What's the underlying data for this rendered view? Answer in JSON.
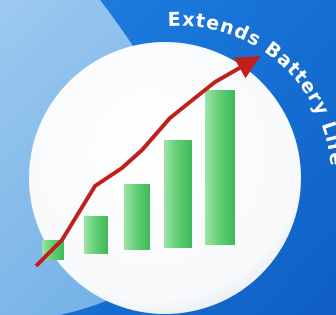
{
  "badge": {
    "text": "Extends Battery Life"
  }
}
